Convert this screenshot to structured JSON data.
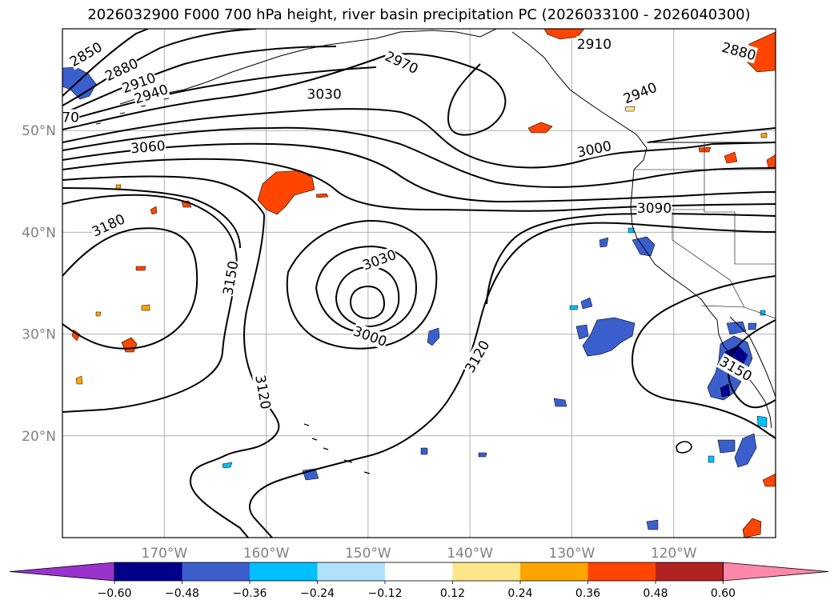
{
  "title": "2026032900 F000 700 hPa height, river basin precipitation PC (2026033100 - 2026040300)",
  "map": {
    "lon_range": [
      -180,
      -110
    ],
    "lat_range": [
      10,
      60
    ],
    "lon_ticks": [
      {
        "lon": -170,
        "label": "170°W"
      },
      {
        "lon": -160,
        "label": "160°W"
      },
      {
        "lon": -150,
        "label": "150°W"
      },
      {
        "lon": -140,
        "label": "140°W"
      },
      {
        "lon": -130,
        "label": "130°W"
      },
      {
        "lon": -120,
        "label": "120°W"
      }
    ],
    "lat_ticks": [
      {
        "lat": 50,
        "label": "50°N"
      },
      {
        "lat": 40,
        "label": "40°N"
      },
      {
        "lat": 30,
        "label": "30°N"
      },
      {
        "lat": 20,
        "label": "20°N"
      }
    ],
    "gridlines": true,
    "contour_labels": [
      {
        "text": "2850",
        "lon": -177.7,
        "lat": 57.5,
        "rot": -30
      },
      {
        "text": "2880",
        "lon": -174.2,
        "lat": 56.0,
        "rot": -25
      },
      {
        "text": "2910",
        "lon": -172.5,
        "lat": 54.7,
        "rot": -20
      },
      {
        "text": "2940",
        "lon": -171.3,
        "lat": 53.6,
        "rot": -18
      },
      {
        "text": "70",
        "lon": -179.2,
        "lat": 51.3,
        "rot": 0
      },
      {
        "text": "3030",
        "lon": -154.3,
        "lat": 53.6,
        "rot": 0
      },
      {
        "text": "3060",
        "lon": -171.6,
        "lat": 48.4,
        "rot": -5
      },
      {
        "text": "2970",
        "lon": -146.7,
        "lat": 56.7,
        "rot": 25
      },
      {
        "text": "2910",
        "lon": -127.8,
        "lat": 58.5,
        "rot": 0
      },
      {
        "text": "2880",
        "lon": -113.6,
        "lat": 57.8,
        "rot": 15
      },
      {
        "text": "2940",
        "lon": -123.3,
        "lat": 53.7,
        "rot": -22
      },
      {
        "text": "3000",
        "lon": -127.8,
        "lat": 48.2,
        "rot": -12
      },
      {
        "text": "3090",
        "lon": -121.9,
        "lat": 42.4,
        "rot": 0
      },
      {
        "text": "3180",
        "lon": -175.5,
        "lat": 40.7,
        "rot": -25
      },
      {
        "text": "3150",
        "lon": -163.5,
        "lat": 35.5,
        "rot": -80
      },
      {
        "text": "3030",
        "lon": -148.9,
        "lat": 37.3,
        "rot": -20
      },
      {
        "text": "3000",
        "lon": -149.8,
        "lat": 29.8,
        "rot": 20
      },
      {
        "text": "3120",
        "lon": -139.3,
        "lat": 27.8,
        "rot": -60
      },
      {
        "text": "3120",
        "lon": -160.3,
        "lat": 24.3,
        "rot": 80
      },
      {
        "text": "3150",
        "lon": -113.9,
        "lat": 26.6,
        "rot": 30
      }
    ]
  },
  "colorbar": {
    "colors": [
      "#9933cc",
      "#00008b",
      "#3a5fcd",
      "#00bfff",
      "#b0e2ff",
      "#ffffff",
      "#fde68a",
      "#ffa500",
      "#ff4500",
      "#b22222",
      "#ff88aa"
    ],
    "ticks": [
      "−0.60",
      "−0.48",
      "−0.36",
      "−0.24",
      "−0.12",
      "0.12",
      "0.24",
      "0.36",
      "0.48",
      "0.60"
    ]
  }
}
